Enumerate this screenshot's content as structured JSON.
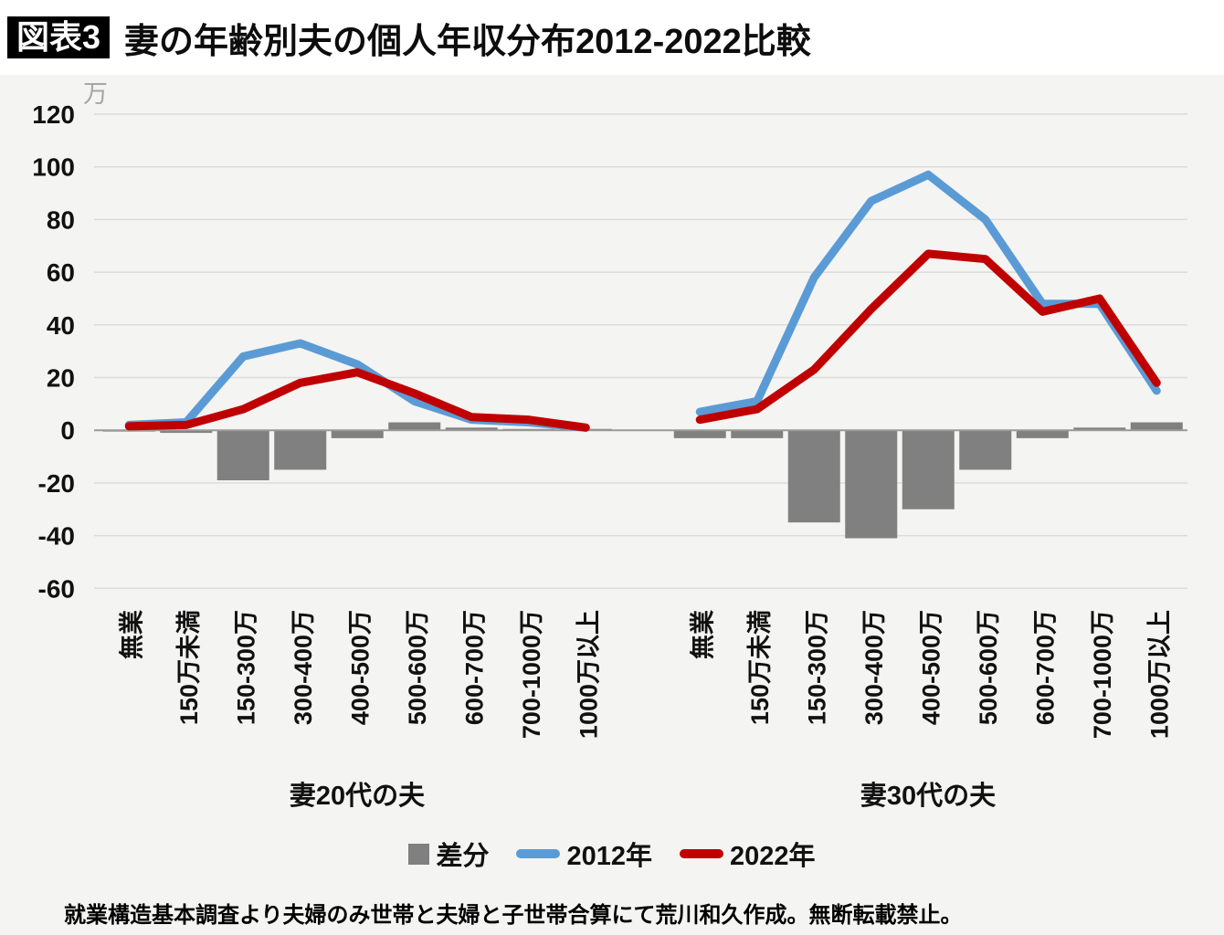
{
  "header": {
    "badge": "図表3",
    "title": "妻の年齢別夫の個人年収分布2012-2022比較"
  },
  "chart_data": {
    "type": "combo-bar-line",
    "unit_label": "万",
    "y_axis": {
      "min": -60,
      "max": 120,
      "step": 20
    },
    "y_ticks": [
      120,
      100,
      80,
      60,
      40,
      20,
      0,
      -20,
      -40,
      -60
    ],
    "categories": [
      "無業",
      "150万未満",
      "150-300万",
      "300-400万",
      "400-500万",
      "500-600万",
      "600-700万",
      "700-1000万",
      "1000万以上"
    ],
    "groups": [
      {
        "label": "妻20代の夫",
        "series": {
          "diff": [
            -0.5,
            -1,
            -19,
            -15,
            -3,
            3,
            1,
            0.5,
            0.5
          ],
          "y2012": [
            2,
            3,
            28,
            33,
            25,
            11,
            4,
            3,
            1
          ],
          "y2022": [
            1.5,
            2,
            8,
            18,
            22,
            14,
            5,
            4,
            1
          ]
        }
      },
      {
        "label": "妻30代の夫",
        "series": {
          "diff": [
            -3,
            -3,
            -35,
            -41,
            -30,
            -15,
            -3,
            1,
            3
          ],
          "y2012": [
            7,
            11,
            58,
            87,
            97,
            80,
            48,
            48,
            15
          ],
          "y2022": [
            4,
            8,
            23,
            46,
            67,
            65,
            45,
            50,
            18
          ]
        }
      }
    ],
    "legend": [
      {
        "label": "差分",
        "type": "bar"
      },
      {
        "label": "2012年",
        "type": "line"
      },
      {
        "label": "2022年",
        "type": "line"
      }
    ],
    "colors": {
      "diff_bar": "#808080",
      "line_2012": "#5B9BD5",
      "line_2022": "#C00000",
      "gridline": "#dcdcda",
      "zero_axis": "#999999",
      "tick_text": "#111111",
      "unit_text": "#a6a6a6"
    }
  },
  "footer": {
    "note": "就業構造基本調査より夫婦のみ世帯と夫婦と子世帯合算にて荒川和久作成。無断転載禁止。"
  }
}
